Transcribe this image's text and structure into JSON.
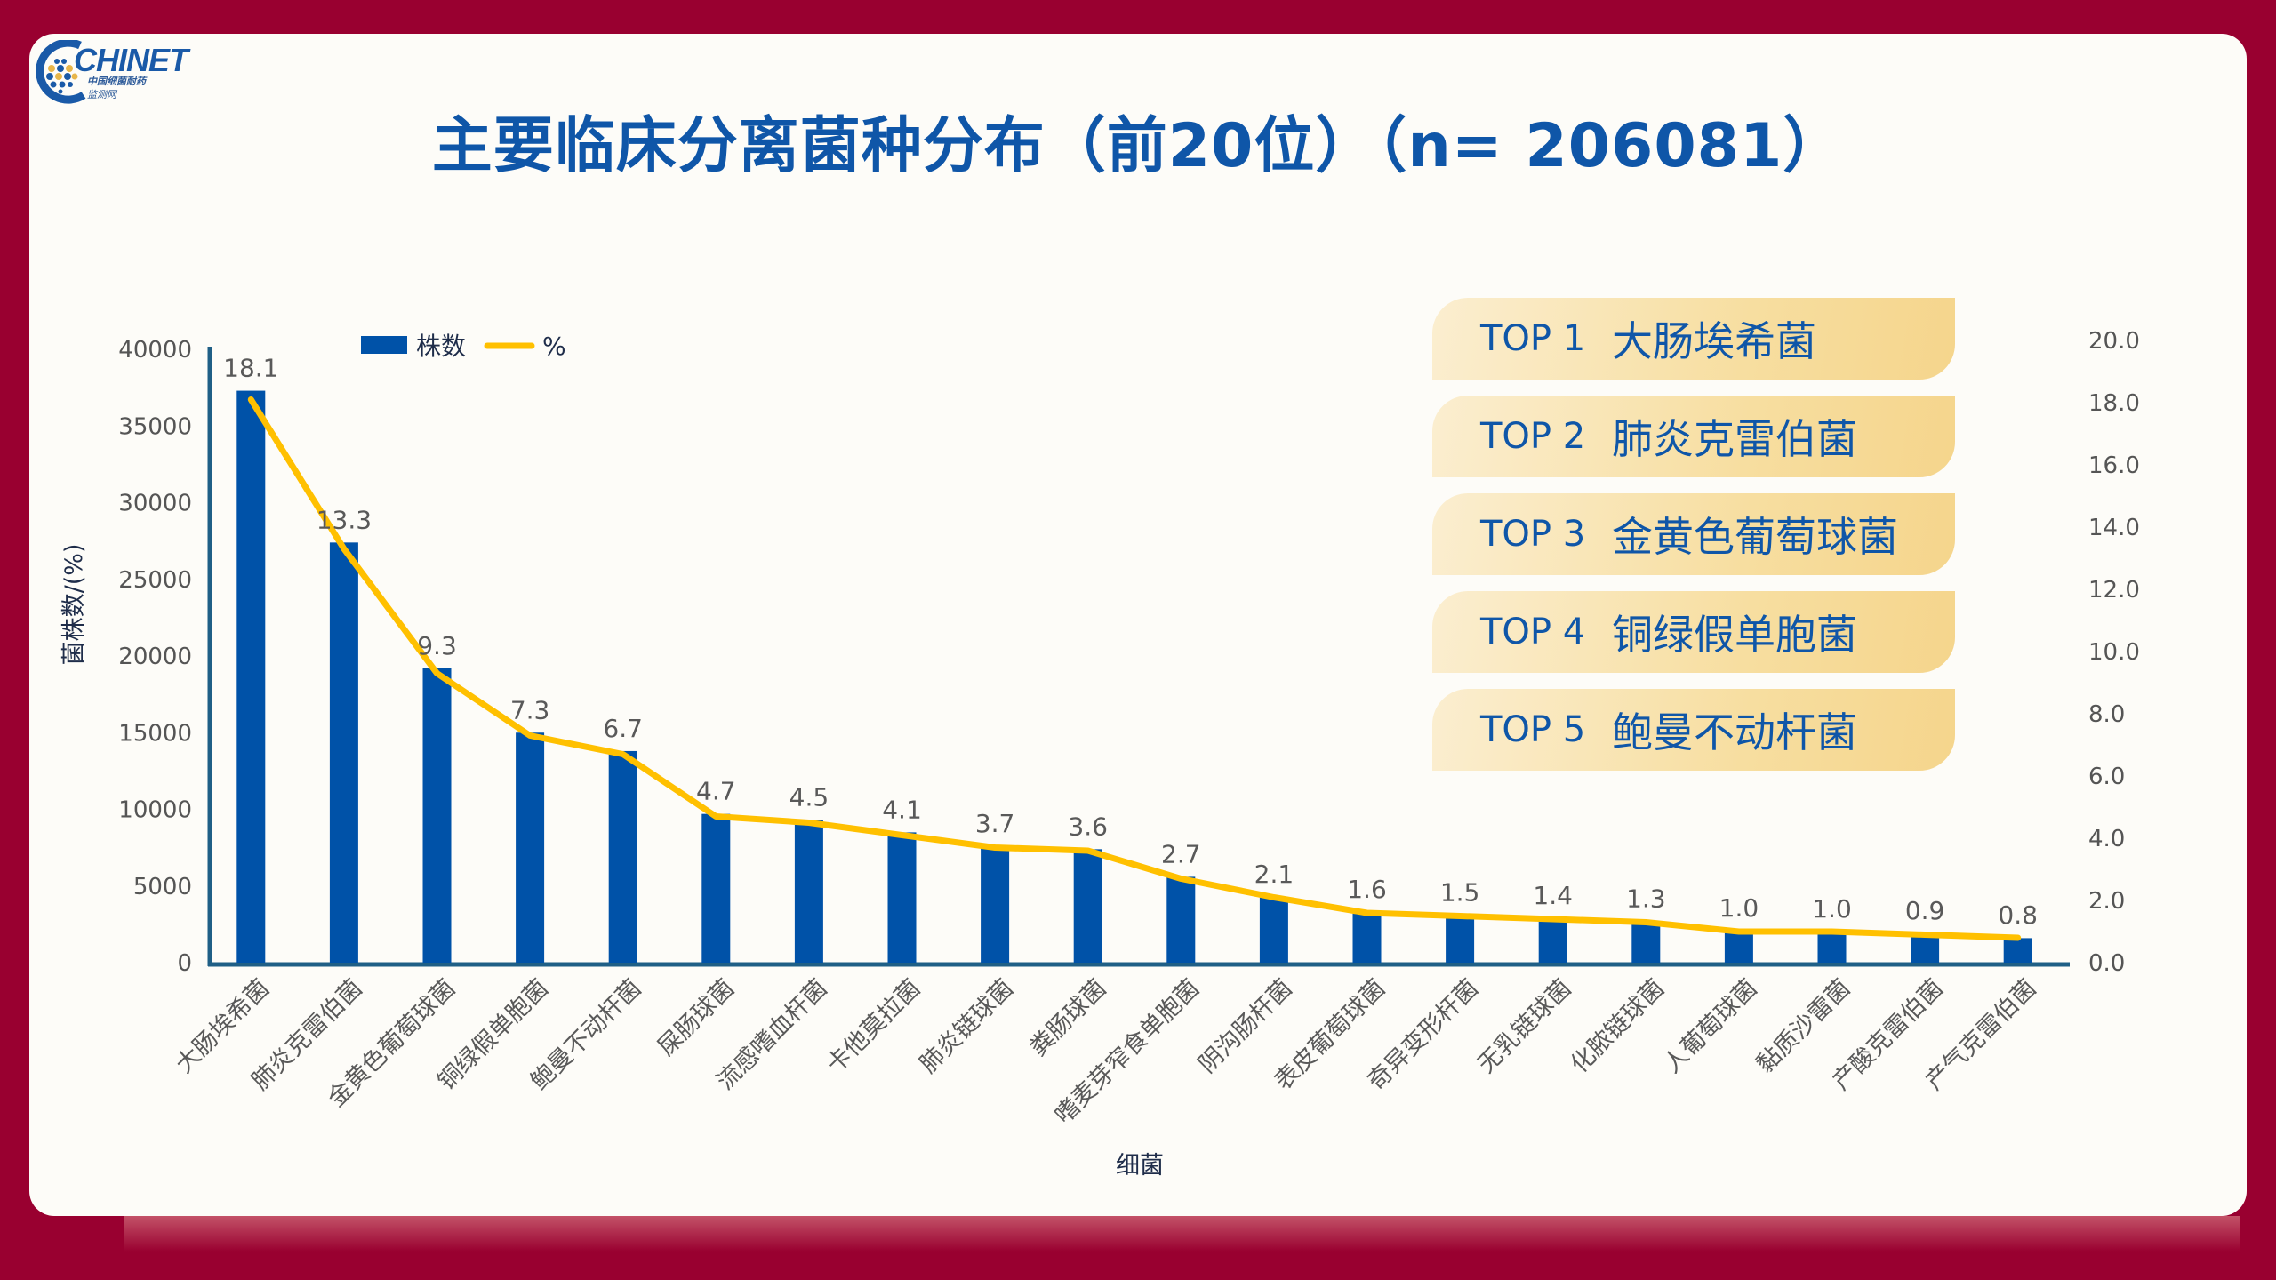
{
  "logo": {
    "word": "CHINET",
    "sub_line1": "中国细菌耐药",
    "sub_line2": "监测网"
  },
  "title": "主要临床分离菌种分布（前20位）（n= 206081）",
  "top_list": [
    {
      "rank": "TOP 1",
      "name": "大肠埃希菌"
    },
    {
      "rank": "TOP 2",
      "name": "肺炎克雷伯菌"
    },
    {
      "rank": "TOP 3",
      "name": "金黄色葡萄球菌"
    },
    {
      "rank": "TOP 4",
      "name": "铜绿假单胞菌"
    },
    {
      "rank": "TOP 5",
      "name": "鲍曼不动杆菌"
    }
  ],
  "colors": {
    "bar": "#0052a8",
    "line": "#ffc000",
    "axis": "#1f5f86",
    "background": "#990030",
    "title": "#0f56a8"
  },
  "chart_data": {
    "type": "bar",
    "title": "主要临床分离菌种分布（前20位）（n= 206081）",
    "xlabel": "细菌",
    "ylabel": "菌株数/(%)",
    "ylim": [
      0,
      40000
    ],
    "y2lim": [
      0,
      20
    ],
    "yticks": [
      "0",
      "5000",
      "10000",
      "15000",
      "20000",
      "25000",
      "30000",
      "35000",
      "40000"
    ],
    "y2ticks": [
      "0.0",
      "2.0",
      "4.0",
      "6.0",
      "8.0",
      "10.0",
      "12.0",
      "14.0",
      "16.0",
      "18.0",
      "20.0"
    ],
    "legend": {
      "position": "top-left",
      "entries": [
        "株数",
        "%"
      ]
    },
    "grid": false,
    "categories": [
      "大肠埃希菌",
      "肺炎克雷伯菌",
      "金黄色葡萄球菌",
      "铜绿假单胞菌",
      "鲍曼不动杆菌",
      "屎肠球菌",
      "流感嗜血杆菌",
      "卡他莫拉菌",
      "肺炎链球菌",
      "粪肠球菌",
      "嗜麦芽窄食单胞菌",
      "阴沟肠杆菌",
      "表皮葡萄球菌",
      "奇异变形杆菌",
      "无乳链球菌",
      "化脓链球菌",
      "人葡萄球菌",
      "黏质沙雷菌",
      "产酸克雷伯菌",
      "产气克雷伯菌"
    ],
    "series": [
      {
        "name": "株数",
        "type": "bar",
        "axis": "left",
        "values": [
          37300,
          27400,
          19200,
          15000,
          13800,
          9700,
          9300,
          8500,
          7600,
          7400,
          5600,
          4300,
          3300,
          3100,
          2900,
          2700,
          2100,
          2000,
          1900,
          1600
        ]
      },
      {
        "name": "%",
        "type": "line",
        "axis": "right",
        "values": [
          18.1,
          13.3,
          9.3,
          7.3,
          6.7,
          4.7,
          4.5,
          4.1,
          3.7,
          3.6,
          2.7,
          2.1,
          1.6,
          1.5,
          1.4,
          1.3,
          1.0,
          1.0,
          0.9,
          0.8
        ],
        "labels": [
          "18.1",
          "13.3",
          "9.3",
          "7.3",
          "6.7",
          "4.7",
          "4.5",
          "4.1",
          "3.7",
          "3.6",
          "2.7",
          "2.1",
          "1.6",
          "1.5",
          "1.4",
          "1.3",
          "1.0",
          "1.0",
          "0.9",
          "0.8"
        ]
      }
    ]
  }
}
